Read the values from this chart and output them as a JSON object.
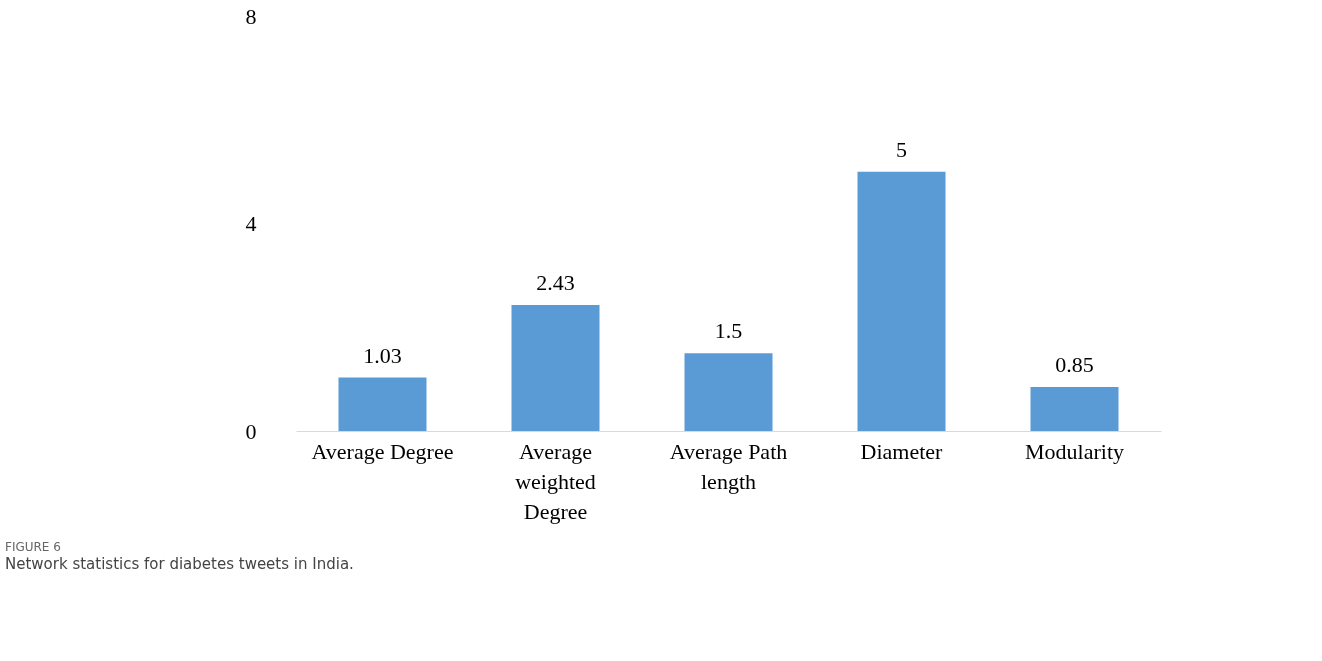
{
  "chart_data": {
    "type": "bar",
    "categories": [
      "Average Degree",
      "Average weighted Degree",
      "Average Path length",
      "Diameter",
      "Modularity"
    ],
    "values": [
      1.03,
      2.43,
      1.5,
      5,
      0.85
    ],
    "color": "#5b9bd5",
    "ylim": [
      0,
      8
    ],
    "yticks": [
      0,
      4,
      8
    ],
    "grid": false,
    "data_labels": true,
    "annotations": [
      "FIGURE 6",
      "Network statistics for diabetes tweets in India."
    ]
  }
}
